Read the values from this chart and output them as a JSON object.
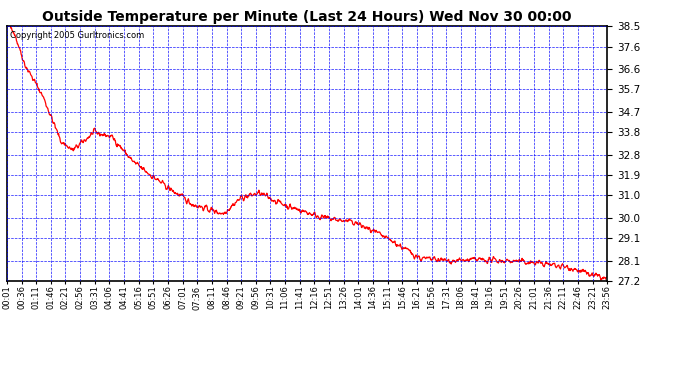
{
  "title": "Outside Temperature per Minute (Last 24 Hours) Wed Nov 30 00:00",
  "copyright": "Copyright 2005 Gurltronics.com",
  "yticks": [
    38.5,
    37.6,
    36.6,
    35.7,
    34.7,
    33.8,
    32.8,
    31.9,
    31.0,
    30.0,
    29.1,
    28.1,
    27.2
  ],
  "ymin": 27.2,
  "ymax": 38.5,
  "line_color": "red",
  "bg_color": "white",
  "grid_color": "blue",
  "border_color": "black",
  "xtick_labels": [
    "00:01",
    "00:36",
    "01:11",
    "01:46",
    "02:21",
    "02:56",
    "03:31",
    "04:06",
    "04:41",
    "05:16",
    "05:51",
    "06:26",
    "07:01",
    "07:36",
    "08:11",
    "08:46",
    "09:21",
    "09:56",
    "10:31",
    "11:06",
    "11:41",
    "12:16",
    "12:51",
    "13:26",
    "14:01",
    "14:36",
    "15:11",
    "15:46",
    "16:21",
    "16:56",
    "17:31",
    "18:06",
    "18:41",
    "19:16",
    "19:51",
    "20:26",
    "21:01",
    "21:36",
    "22:11",
    "22:46",
    "23:21",
    "23:56"
  ],
  "temp_segments": [
    {
      "t0": 0.0,
      "t1": 0.01,
      "v0": 38.5,
      "v1": 38.4
    },
    {
      "t0": 0.01,
      "t1": 0.03,
      "v0": 38.4,
      "v1": 36.8
    },
    {
      "t0": 0.03,
      "t1": 0.06,
      "v0": 36.8,
      "v1": 35.4
    },
    {
      "t0": 0.06,
      "t1": 0.09,
      "v0": 35.4,
      "v1": 33.4
    },
    {
      "t0": 0.09,
      "t1": 0.11,
      "v0": 33.4,
      "v1": 33.0
    },
    {
      "t0": 0.11,
      "t1": 0.145,
      "v0": 33.0,
      "v1": 33.8
    },
    {
      "t0": 0.145,
      "t1": 0.175,
      "v0": 33.8,
      "v1": 33.6
    },
    {
      "t0": 0.175,
      "t1": 0.21,
      "v0": 33.6,
      "v1": 32.5
    },
    {
      "t0": 0.21,
      "t1": 0.26,
      "v0": 32.5,
      "v1": 31.5
    },
    {
      "t0": 0.26,
      "t1": 0.31,
      "v0": 31.5,
      "v1": 30.6
    },
    {
      "t0": 0.31,
      "t1": 0.36,
      "v0": 30.6,
      "v1": 30.2
    },
    {
      "t0": 0.36,
      "t1": 0.39,
      "v0": 30.2,
      "v1": 30.9
    },
    {
      "t0": 0.39,
      "t1": 0.42,
      "v0": 30.9,
      "v1": 31.1
    },
    {
      "t0": 0.42,
      "t1": 0.47,
      "v0": 31.1,
      "v1": 30.5
    },
    {
      "t0": 0.47,
      "t1": 0.53,
      "v0": 30.5,
      "v1": 30.0
    },
    {
      "t0": 0.53,
      "t1": 0.58,
      "v0": 30.0,
      "v1": 29.8
    },
    {
      "t0": 0.58,
      "t1": 0.64,
      "v0": 29.8,
      "v1": 29.0
    },
    {
      "t0": 0.64,
      "t1": 0.69,
      "v0": 29.0,
      "v1": 28.2
    },
    {
      "t0": 0.69,
      "t1": 0.74,
      "v0": 28.2,
      "v1": 28.1
    },
    {
      "t0": 0.74,
      "t1": 0.79,
      "v0": 28.1,
      "v1": 28.15
    },
    {
      "t0": 0.79,
      "t1": 0.84,
      "v0": 28.15,
      "v1": 28.1
    },
    {
      "t0": 0.84,
      "t1": 0.89,
      "v0": 28.1,
      "v1": 28.0
    },
    {
      "t0": 0.89,
      "t1": 0.94,
      "v0": 28.0,
      "v1": 27.8
    },
    {
      "t0": 0.94,
      "t1": 0.97,
      "v0": 27.8,
      "v1": 27.5
    },
    {
      "t0": 0.97,
      "t1": 1.0,
      "v0": 27.5,
      "v1": 27.3
    }
  ]
}
